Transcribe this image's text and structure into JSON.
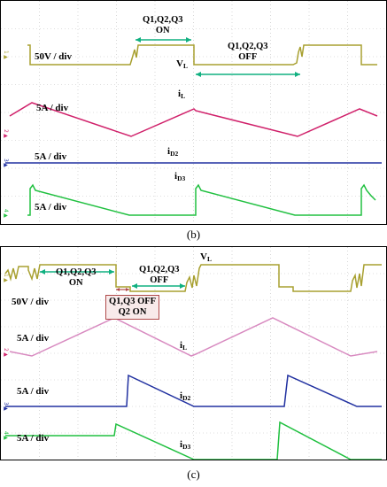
{
  "panel_b": {
    "caption": "(b)",
    "vl_label": "V",
    "vl_sub": "L",
    "il_label": "i",
    "il_sub": "L",
    "id2_label": "i",
    "id2_sub": "D2",
    "id3_label": "i",
    "id3_sub": "D3",
    "scale_v": "50V / div",
    "scale_il": "5A / div",
    "scale_id2": "5A / div",
    "scale_id3": "5A / div",
    "on_note_1": "Q1,Q2,Q3",
    "on_note_2": "ON",
    "off_note_1": "Q1,Q2,Q3",
    "off_note_2": "OFF"
  },
  "panel_c": {
    "caption": "(c)",
    "vl_label": "V",
    "vl_sub": "L",
    "il_label": "i",
    "il_sub": "L",
    "id2_label": "i",
    "id2_sub": "D2",
    "id3_label": "i",
    "id3_sub": "D3",
    "scale_v": "50V / div",
    "scale_il": "5A / div",
    "scale_id2": "5A / div",
    "scale_id3": "5A / div",
    "on_note_1": "Q1,Q2,Q3",
    "on_note_2": "ON",
    "off_note_1": "Q1,Q2,Q3",
    "off_note_2": "OFF",
    "mid_note_1": "Q1,Q3 OFF",
    "mid_note_2": "Q2 ON"
  },
  "colors": {
    "vl": "#a8a030",
    "il": "#d0206a",
    "id2": "#2030a0",
    "id3": "#20c040",
    "arrow": "#10b080",
    "grid": "#bfbfbf"
  }
}
